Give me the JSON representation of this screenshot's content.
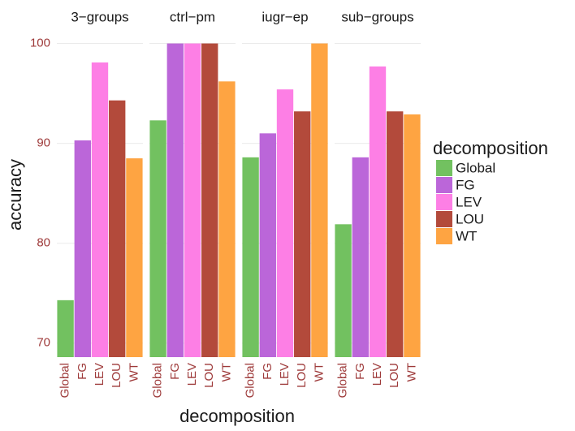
{
  "chart_data": {
    "type": "bar",
    "categories": [
      "Global",
      "FG",
      "LEV",
      "LOU",
      "WT"
    ],
    "colors": [
      "#72c160",
      "#bb66d9",
      "#fd7fe5",
      "#b34a3b",
      "#fea442"
    ],
    "facets": [
      {
        "title": "3−groups",
        "values": [
          74.3,
          90.3,
          98.1,
          94.3,
          88.5
        ]
      },
      {
        "title": "ctrl−pm",
        "values": [
          92.3,
          100,
          100,
          100,
          96.2
        ]
      },
      {
        "title": "iugr−ep",
        "values": [
          88.6,
          91.0,
          95.4,
          93.2,
          100
        ]
      },
      {
        "title": "sub−groups",
        "values": [
          81.9,
          88.6,
          97.7,
          93.2,
          92.9
        ]
      }
    ],
    "x_label": "decomposition",
    "y_label": "accuracy",
    "legend_title": "decomposition",
    "ylim": [
      68.6,
      101.1
    ],
    "yticks": [
      70,
      80,
      90,
      100
    ],
    "grid": true
  }
}
